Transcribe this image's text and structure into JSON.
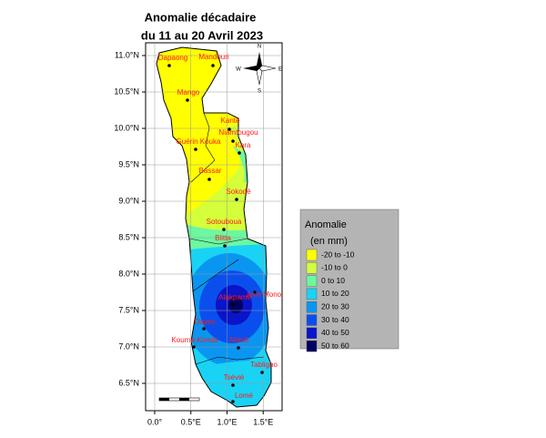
{
  "map": {
    "title": [
      "Anomalie décadaire",
      "du 11 au 20 Avril 2023"
    ],
    "lat_ticks": [
      {
        "value": 11.0,
        "label": "11.0°N"
      },
      {
        "value": 10.5,
        "label": "10.5°N"
      },
      {
        "value": 10.0,
        "label": "10.0°N"
      },
      {
        "value": 9.5,
        "label": "9.5°N"
      },
      {
        "value": 9.0,
        "label": "9.0°N"
      },
      {
        "value": 8.5,
        "label": "8.5°N"
      },
      {
        "value": 8.0,
        "label": "8.0°N"
      },
      {
        "value": 7.5,
        "label": "7.5°N"
      },
      {
        "value": 7.0,
        "label": "7.0°N"
      },
      {
        "value": 6.5,
        "label": "6.5°N"
      }
    ],
    "lon_ticks": [
      {
        "value": 0.0,
        "label": "0.0°"
      },
      {
        "value": 0.5,
        "label": "0.5°E"
      },
      {
        "value": 1.0,
        "label": "1.0°E"
      },
      {
        "value": 1.5,
        "label": "1.5°E"
      }
    ],
    "compass": [
      "N",
      "E",
      "S",
      "W"
    ],
    "cities": [
      "Dapaong",
      "Mandouri",
      "Mango",
      "Kanté",
      "Niamtougou",
      "Guérin Kouka",
      "Kara",
      "Bassar",
      "Sokodé",
      "Sotouboua",
      "Blitta",
      "Atakpamé",
      "Anie Mono",
      "Dayes",
      "Kouma-Konda",
      "Notsé",
      "Tabligbo",
      "Tsévié",
      "Lomé"
    ],
    "legend": {
      "title": [
        "Anomalie",
        "(en mm)"
      ],
      "items": [
        {
          "label": "-20 to -10",
          "color": "#ffff00"
        },
        {
          "label": "-10 to 0",
          "color": "#d4ff3a"
        },
        {
          "label": "0 to 10",
          "color": "#6cf7a0"
        },
        {
          "label": "10 to 20",
          "color": "#19d3f5"
        },
        {
          "label": "20 to 30",
          "color": "#0a96f0"
        },
        {
          "label": "30 to 40",
          "color": "#0a4fee"
        },
        {
          "label": "40 to 50",
          "color": "#0a14c8"
        },
        {
          "label": "50 to 60",
          "color": "#000060"
        }
      ]
    }
  }
}
